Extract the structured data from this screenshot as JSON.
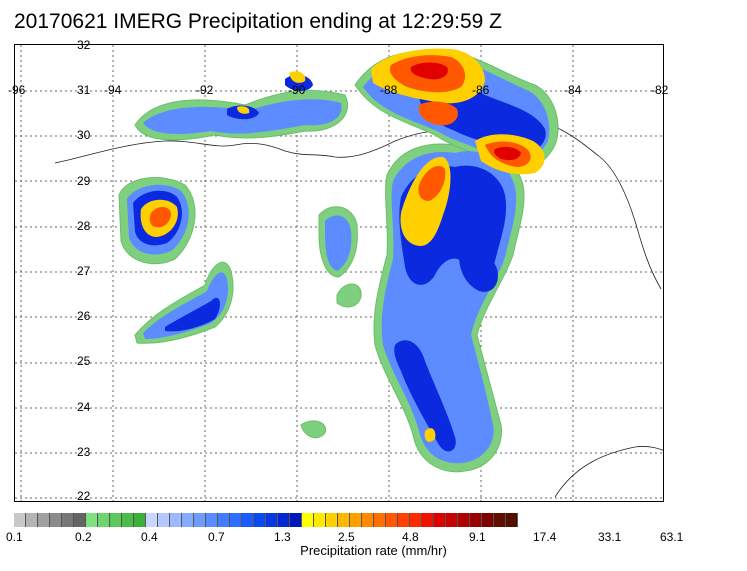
{
  "title": "20170621 IMERG Precipitation ending at 12:29:59 Z",
  "map": {
    "lon_labels": [
      "-96",
      "-94",
      "-92",
      "-90",
      "-88",
      "-86",
      "-84",
      "-82"
    ],
    "lat_labels": [
      "32",
      "31",
      "30",
      "29",
      "28",
      "27",
      "26",
      "25",
      "24",
      "23",
      "22"
    ],
    "lon_range": [
      -96,
      -82
    ],
    "lat_range": [
      22,
      32
    ]
  },
  "colorbar": {
    "ticks": [
      "0.1",
      "0.2",
      "0.4",
      "0.7",
      "1.3",
      "2.5",
      "4.8",
      "9.1",
      "17.4",
      "33.1",
      "63.1"
    ],
    "label": "Precipitation rate (mm/hr)",
    "colors": [
      "#c8c8c8",
      "#b4b4b4",
      "#a0a0a0",
      "#8c8c8c",
      "#787878",
      "#646464",
      "#7fe07f",
      "#6ed46e",
      "#5cc85c",
      "#4bbc4b",
      "#3aaf3a",
      "#c8d7ff",
      "#b2c8ff",
      "#9cb9ff",
      "#86aaff",
      "#6f9bff",
      "#598cff",
      "#437dff",
      "#2e6eff",
      "#1a5bff",
      "#0b48f0",
      "#0838e0",
      "#0428d0",
      "#0018b8",
      "#ffff00",
      "#ffe800",
      "#ffd000",
      "#ffb800",
      "#ffa000",
      "#ff8800",
      "#ff7000",
      "#ff5800",
      "#ff4000",
      "#ff2800",
      "#f01000",
      "#e00000",
      "#c80000",
      "#b00000",
      "#980000",
      "#800000",
      "#601000",
      "#501000"
    ]
  }
}
